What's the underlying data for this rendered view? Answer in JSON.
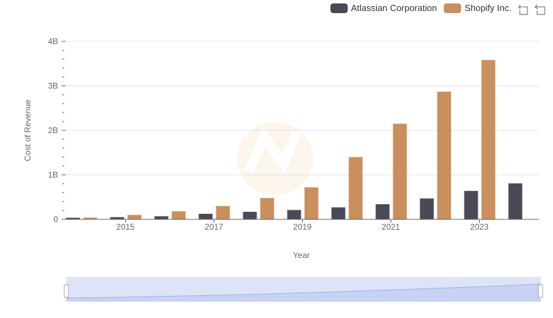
{
  "chart_data": {
    "type": "bar",
    "title": "",
    "xlabel": "Year",
    "ylabel": "Cost of Revenue",
    "ylim": [
      0,
      4
    ],
    "y_unit": "B",
    "y_ticks": [
      "0",
      "1B",
      "2B",
      "3B",
      "4B"
    ],
    "x_ticks": [
      "2015",
      "2017",
      "2019",
      "2021",
      "2023"
    ],
    "categories": [
      "2014",
      "2015",
      "2016",
      "2017",
      "2018",
      "2019",
      "2020",
      "2021",
      "2022",
      "2023",
      "2024"
    ],
    "series": [
      {
        "name": "Atlassian Corporation",
        "color": "#4a4a56",
        "values": [
          0.036,
          0.05,
          0.07,
          0.125,
          0.17,
          0.21,
          0.27,
          0.34,
          0.47,
          0.64,
          0.81
        ]
      },
      {
        "name": "Shopify Inc.",
        "color": "#c98f5c",
        "values": [
          0.04,
          0.1,
          0.18,
          0.3,
          0.48,
          0.72,
          1.4,
          2.15,
          2.87,
          3.58,
          null
        ]
      }
    ],
    "grid": true,
    "legend_position": "top-right"
  }
}
